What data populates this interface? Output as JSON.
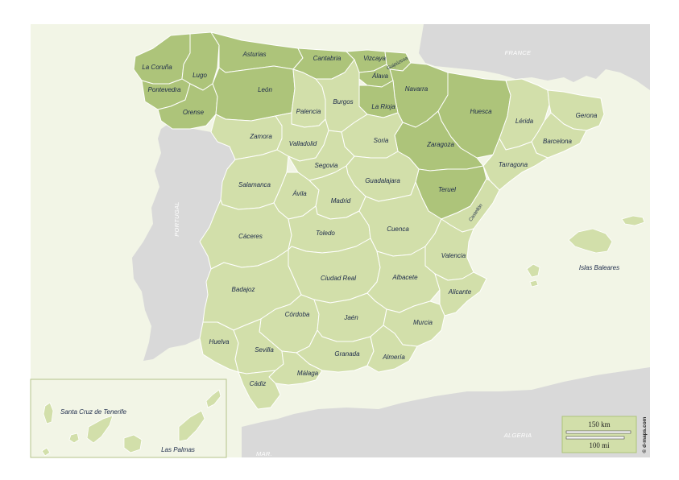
{
  "colors": {
    "sea": "#f2f5e6",
    "foreign_land": "#d9d9d9",
    "province": "#d2dfaa",
    "highlight": "#adc47a",
    "border": "#ffffff",
    "label": "#1c2a4a"
  },
  "countries": {
    "france": "FRANCE",
    "portugal": "PORTUGAL",
    "algeria": "ALGERIA",
    "morocco": "MAR."
  },
  "provinces": [
    "La Coruña",
    "Lugo",
    "Asturias",
    "Cantabria",
    "Vizcaya",
    "Guipúzcoa",
    "Álava",
    "Pontevedra",
    "León",
    "Navarra",
    "Orense",
    "Palencia",
    "Burgos",
    "La Rioja",
    "Huesca",
    "Lérida",
    "Gerona",
    "Zamora",
    "Valladolid",
    "Soria",
    "Zaragoza",
    "Barcelona",
    "Tarragona",
    "Segovia",
    "Salamanca",
    "Ávila",
    "Guadalajara",
    "Madrid",
    "Teruel",
    "Castellón",
    "Cáceres",
    "Toledo",
    "Cuenca",
    "Valencia",
    "Islas Baleares",
    "Ciudad Real",
    "Albacete",
    "Badajoz",
    "Alicante",
    "Córdoba",
    "Jaén",
    "Murcia",
    "Huelva",
    "Sevilla",
    "Granada",
    "Almería",
    "Málaga",
    "Cádiz",
    "Santa Cruz de Tenerife",
    "Las Palmas"
  ],
  "highlighted_provinces": [
    "La Coruña",
    "Pontevedra",
    "Lugo",
    "Orense",
    "Asturias",
    "León",
    "Cantabria",
    "Vizcaya",
    "Guipúzcoa",
    "Álava",
    "Navarra",
    "La Rioja",
    "Huesca",
    "Zaragoza",
    "Teruel"
  ],
  "scale": {
    "km": "150 km",
    "mi": "100 mi"
  },
  "credit": "© d-maps.com"
}
